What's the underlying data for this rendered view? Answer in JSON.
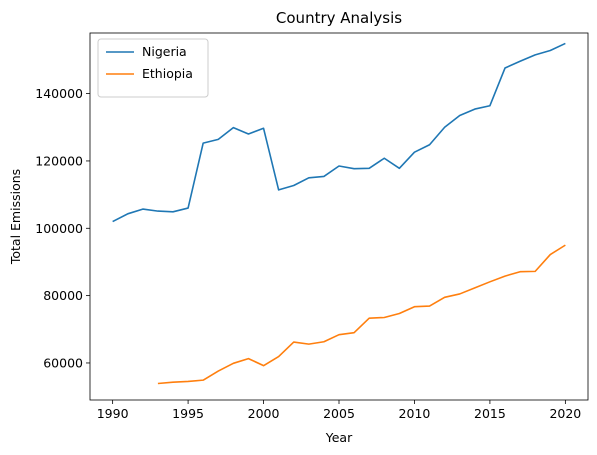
{
  "chart_data": {
    "type": "line",
    "title": "Country Analysis",
    "xlabel": "Year",
    "ylabel": "Total Emissions",
    "xlim": [
      1988.5,
      2021.5
    ],
    "ylim": [
      49000,
      158000
    ],
    "xticks": [
      1990,
      1995,
      2000,
      2005,
      2010,
      2015,
      2020
    ],
    "yticks": [
      60000,
      80000,
      100000,
      120000,
      140000
    ],
    "legend_position": "top-left",
    "grid": false,
    "series": [
      {
        "name": "Nigeria",
        "color": "#1f77b4",
        "x": [
          1990,
          1991,
          1992,
          1993,
          1994,
          1995,
          1996,
          1997,
          1998,
          1999,
          2000,
          2001,
          2002,
          2003,
          2004,
          2005,
          2006,
          2007,
          2008,
          2009,
          2010,
          2011,
          2012,
          2013,
          2014,
          2015,
          2016,
          2017,
          2018,
          2019,
          2020
        ],
        "values": [
          102000,
          104300,
          105700,
          105100,
          104900,
          106000,
          125300,
          126400,
          129900,
          128000,
          129700,
          111400,
          112700,
          115000,
          115400,
          118500,
          117700,
          117800,
          120800,
          117800,
          122600,
          124800,
          130000,
          133500,
          135400,
          136400,
          147600,
          149600,
          151500,
          152800,
          154900
        ]
      },
      {
        "name": "Ethiopia",
        "color": "#ff7f0e",
        "x": [
          1993,
          1994,
          1995,
          1996,
          1997,
          1998,
          1999,
          2000,
          2001,
          2002,
          2003,
          2004,
          2005,
          2006,
          2007,
          2008,
          2009,
          2010,
          2011,
          2012,
          2013,
          2014,
          2015,
          2016,
          2017,
          2018,
          2019,
          2020
        ],
        "values": [
          53900,
          54300,
          54500,
          54900,
          57600,
          59900,
          61300,
          59200,
          61900,
          66200,
          65600,
          66300,
          68400,
          69000,
          73300,
          73500,
          74700,
          76700,
          76900,
          79500,
          80500,
          82300,
          84100,
          85800,
          87100,
          87200,
          92200,
          95000
        ]
      }
    ]
  }
}
